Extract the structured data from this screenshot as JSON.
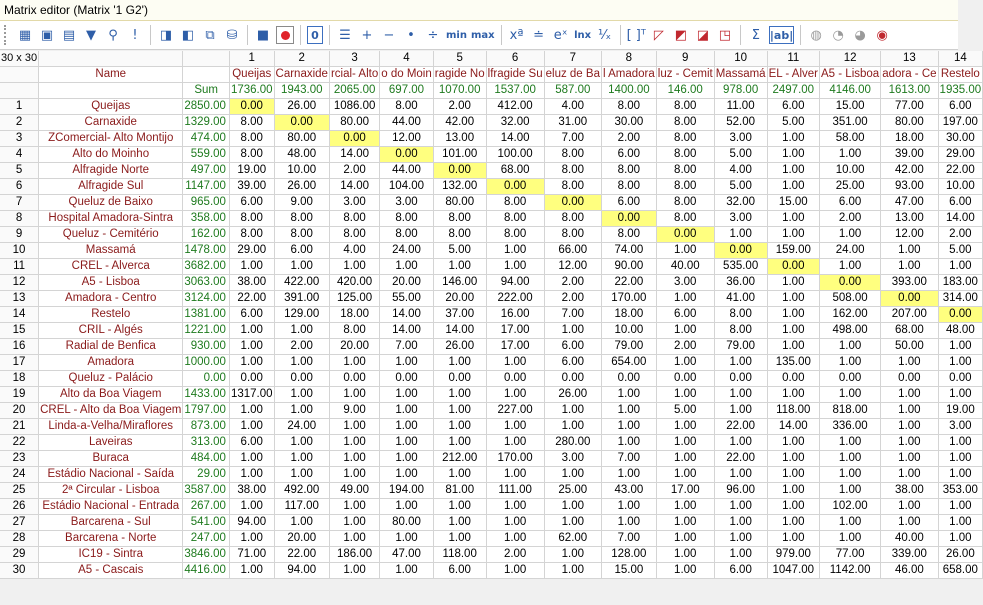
{
  "window": {
    "title": "Matrix editor (Matrix '1 G2')"
  },
  "toolbar": {
    "items": [
      {
        "icon": "grid-icon",
        "glyph": "▦"
      },
      {
        "icon": "open-icon",
        "glyph": "▣"
      },
      {
        "icon": "table-icon",
        "glyph": "▤"
      },
      {
        "icon": "filter-icon",
        "glyph": "▼"
      },
      {
        "icon": "binoculars-icon",
        "glyph": "⚲"
      },
      {
        "icon": "exclamation-icon",
        "glyph": "!"
      },
      {
        "icon": "sep"
      },
      {
        "icon": "import-icon",
        "glyph": "◨"
      },
      {
        "icon": "export-icon",
        "glyph": "◧"
      },
      {
        "icon": "copy-icon",
        "glyph": "⧉"
      },
      {
        "icon": "database-icon",
        "glyph": "⛁"
      },
      {
        "icon": "sep"
      },
      {
        "icon": "stop-icon",
        "glyph": "■"
      },
      {
        "icon": "record-icon",
        "glyph": ""
      },
      {
        "icon": "sep"
      },
      {
        "icon": "zero-icon",
        "glyph": "0"
      },
      {
        "icon": "sep"
      },
      {
        "icon": "list-icon",
        "glyph": "☰"
      },
      {
        "icon": "plus-icon",
        "glyph": "+"
      },
      {
        "icon": "minus-icon",
        "glyph": "−"
      },
      {
        "icon": "dot-icon",
        "glyph": "•"
      },
      {
        "icon": "divide-icon",
        "glyph": "÷"
      },
      {
        "icon": "min-icon",
        "glyph": "min"
      },
      {
        "icon": "max-icon",
        "glyph": "max"
      },
      {
        "icon": "sep"
      },
      {
        "icon": "power-icon",
        "glyph": "xª"
      },
      {
        "icon": "equals-icon",
        "glyph": "≐"
      },
      {
        "icon": "exp-icon",
        "glyph": "eˣ"
      },
      {
        "icon": "ln-icon",
        "glyph": "lnx"
      },
      {
        "icon": "reciprocal-icon",
        "glyph": "¹⁄ₓ"
      },
      {
        "icon": "sep"
      },
      {
        "icon": "brackets-icon",
        "glyph": "[ ]ᵀ"
      },
      {
        "icon": "diag-icon-1",
        "glyph": "◸"
      },
      {
        "icon": "diag-icon-2",
        "glyph": "◩"
      },
      {
        "icon": "diag-icon-3",
        "glyph": "◪"
      },
      {
        "icon": "diag-icon-4",
        "glyph": "◳"
      },
      {
        "icon": "sep"
      },
      {
        "icon": "sigma-icon",
        "glyph": "Σ"
      },
      {
        "icon": "abs-icon",
        "glyph": "|ab|"
      },
      {
        "icon": "sep"
      },
      {
        "icon": "chart-icon-1",
        "glyph": "◍"
      },
      {
        "icon": "chart-icon-2",
        "glyph": "◔"
      },
      {
        "icon": "chart-icon-3",
        "glyph": "◕"
      },
      {
        "icon": "chart-icon-4",
        "glyph": "◉"
      }
    ]
  },
  "matrix": {
    "corner": "30 x 30",
    "name_header": "Name",
    "sum_header": "Sum",
    "col_numbers": [
      "1",
      "2",
      "3",
      "4",
      "5",
      "6",
      "7",
      "8",
      "9",
      "10",
      "11",
      "12",
      "13",
      "14"
    ],
    "col_names": [
      "Queijas",
      "Carnaxide",
      "rcial- Alto",
      "o do Moin",
      "ragide No",
      "lfragide Su",
      "eluz de Ba",
      "l Amadora",
      "luz - Cemit",
      "Massamá",
      "EL - Alver",
      "A5 - Lisboa",
      "adora - Ce",
      "Restelo"
    ],
    "col_sums": [
      "1736.00",
      "1943.00",
      "2065.00",
      "697.00",
      "1070.00",
      "1537.00",
      "587.00",
      "1400.00",
      "146.00",
      "978.00",
      "2497.00",
      "4146.00",
      "1613.00",
      "1935.00"
    ],
    "rows": [
      {
        "id": "1",
        "name": "Queijas",
        "sum": "2850.00",
        "values": [
          "0.00",
          "26.00",
          "1086.00",
          "8.00",
          "2.00",
          "412.00",
          "4.00",
          "8.00",
          "8.00",
          "11.00",
          "6.00",
          "15.00",
          "77.00",
          "6.00"
        ]
      },
      {
        "id": "2",
        "name": "Carnaxide",
        "sum": "1329.00",
        "values": [
          "8.00",
          "0.00",
          "80.00",
          "44.00",
          "42.00",
          "32.00",
          "31.00",
          "30.00",
          "8.00",
          "52.00",
          "5.00",
          "351.00",
          "80.00",
          "197.00"
        ]
      },
      {
        "id": "3",
        "name": "ZComercial- Alto Montijo",
        "sum": "474.00",
        "values": [
          "8.00",
          "80.00",
          "0.00",
          "12.00",
          "13.00",
          "14.00",
          "7.00",
          "2.00",
          "8.00",
          "3.00",
          "1.00",
          "58.00",
          "18.00",
          "30.00"
        ]
      },
      {
        "id": "4",
        "name": "Alto do Moinho",
        "sum": "559.00",
        "values": [
          "8.00",
          "48.00",
          "14.00",
          "0.00",
          "101.00",
          "100.00",
          "8.00",
          "6.00",
          "8.00",
          "5.00",
          "1.00",
          "1.00",
          "39.00",
          "29.00"
        ]
      },
      {
        "id": "5",
        "name": "Alfragide Norte",
        "sum": "497.00",
        "values": [
          "19.00",
          "10.00",
          "2.00",
          "44.00",
          "0.00",
          "68.00",
          "8.00",
          "8.00",
          "8.00",
          "4.00",
          "1.00",
          "10.00",
          "42.00",
          "22.00"
        ]
      },
      {
        "id": "6",
        "name": "Alfragide Sul",
        "sum": "1147.00",
        "values": [
          "39.00",
          "26.00",
          "14.00",
          "104.00",
          "132.00",
          "0.00",
          "8.00",
          "8.00",
          "8.00",
          "5.00",
          "1.00",
          "25.00",
          "93.00",
          "10.00"
        ]
      },
      {
        "id": "7",
        "name": "Queluz de Baixo",
        "sum": "965.00",
        "values": [
          "6.00",
          "9.00",
          "3.00",
          "3.00",
          "80.00",
          "8.00",
          "0.00",
          "6.00",
          "8.00",
          "32.00",
          "15.00",
          "6.00",
          "47.00",
          "6.00"
        ]
      },
      {
        "id": "8",
        "name": "Hospital Amadora-Sintra",
        "sum": "358.00",
        "values": [
          "8.00",
          "8.00",
          "8.00",
          "8.00",
          "8.00",
          "8.00",
          "8.00",
          "0.00",
          "8.00",
          "3.00",
          "1.00",
          "2.00",
          "13.00",
          "14.00"
        ]
      },
      {
        "id": "9",
        "name": "Queluz - Cemitério",
        "sum": "162.00",
        "values": [
          "8.00",
          "8.00",
          "8.00",
          "8.00",
          "8.00",
          "8.00",
          "8.00",
          "8.00",
          "0.00",
          "1.00",
          "1.00",
          "1.00",
          "12.00",
          "2.00"
        ]
      },
      {
        "id": "10",
        "name": "Massamá",
        "sum": "1478.00",
        "values": [
          "29.00",
          "6.00",
          "4.00",
          "24.00",
          "5.00",
          "1.00",
          "66.00",
          "74.00",
          "1.00",
          "0.00",
          "159.00",
          "24.00",
          "1.00",
          "5.00"
        ]
      },
      {
        "id": "11",
        "name": "CREL - Alverca",
        "sum": "3682.00",
        "values": [
          "1.00",
          "1.00",
          "1.00",
          "1.00",
          "1.00",
          "1.00",
          "12.00",
          "90.00",
          "40.00",
          "535.00",
          "0.00",
          "1.00",
          "1.00",
          "1.00"
        ]
      },
      {
        "id": "12",
        "name": "A5 - Lisboa",
        "sum": "3063.00",
        "values": [
          "38.00",
          "422.00",
          "420.00",
          "20.00",
          "146.00",
          "94.00",
          "2.00",
          "22.00",
          "3.00",
          "36.00",
          "1.00",
          "0.00",
          "393.00",
          "183.00"
        ]
      },
      {
        "id": "13",
        "name": "Amadora - Centro",
        "sum": "3124.00",
        "values": [
          "22.00",
          "391.00",
          "125.00",
          "55.00",
          "20.00",
          "222.00",
          "2.00",
          "170.00",
          "1.00",
          "41.00",
          "1.00",
          "508.00",
          "0.00",
          "314.00"
        ]
      },
      {
        "id": "14",
        "name": "Restelo",
        "sum": "1381.00",
        "values": [
          "6.00",
          "129.00",
          "18.00",
          "14.00",
          "37.00",
          "16.00",
          "7.00",
          "18.00",
          "6.00",
          "8.00",
          "1.00",
          "162.00",
          "207.00",
          "0.00"
        ]
      },
      {
        "id": "15",
        "name": "CRIL - Algés",
        "sum": "1221.00",
        "values": [
          "1.00",
          "1.00",
          "8.00",
          "14.00",
          "14.00",
          "17.00",
          "1.00",
          "10.00",
          "1.00",
          "8.00",
          "1.00",
          "498.00",
          "68.00",
          "48.00"
        ]
      },
      {
        "id": "16",
        "name": "Radial de Benfica",
        "sum": "930.00",
        "values": [
          "1.00",
          "2.00",
          "20.00",
          "7.00",
          "26.00",
          "17.00",
          "6.00",
          "79.00",
          "2.00",
          "79.00",
          "1.00",
          "1.00",
          "50.00",
          "1.00"
        ]
      },
      {
        "id": "17",
        "name": "Amadora",
        "sum": "1000.00",
        "values": [
          "1.00",
          "1.00",
          "1.00",
          "1.00",
          "1.00",
          "1.00",
          "6.00",
          "654.00",
          "1.00",
          "1.00",
          "135.00",
          "1.00",
          "1.00",
          "1.00"
        ]
      },
      {
        "id": "18",
        "name": "Queluz - Palácio",
        "sum": "0.00",
        "values": [
          "0.00",
          "0.00",
          "0.00",
          "0.00",
          "0.00",
          "0.00",
          "0.00",
          "0.00",
          "0.00",
          "0.00",
          "0.00",
          "0.00",
          "0.00",
          "0.00"
        ]
      },
      {
        "id": "19",
        "name": "Alto da Boa Viagem",
        "sum": "1433.00",
        "values": [
          "1317.00",
          "1.00",
          "1.00",
          "1.00",
          "1.00",
          "1.00",
          "26.00",
          "1.00",
          "1.00",
          "1.00",
          "1.00",
          "1.00",
          "1.00",
          "1.00"
        ]
      },
      {
        "id": "20",
        "name": "CREL - Alto da Boa Viagem",
        "sum": "1797.00",
        "values": [
          "1.00",
          "1.00",
          "9.00",
          "1.00",
          "1.00",
          "227.00",
          "1.00",
          "1.00",
          "5.00",
          "1.00",
          "118.00",
          "818.00",
          "1.00",
          "19.00"
        ]
      },
      {
        "id": "21",
        "name": "Linda-a-Velha/Miraflores",
        "sum": "873.00",
        "values": [
          "1.00",
          "24.00",
          "1.00",
          "1.00",
          "1.00",
          "1.00",
          "1.00",
          "1.00",
          "1.00",
          "22.00",
          "14.00",
          "336.00",
          "1.00",
          "3.00"
        ]
      },
      {
        "id": "22",
        "name": "Laveiras",
        "sum": "313.00",
        "values": [
          "6.00",
          "1.00",
          "1.00",
          "1.00",
          "1.00",
          "1.00",
          "280.00",
          "1.00",
          "1.00",
          "1.00",
          "1.00",
          "1.00",
          "1.00",
          "1.00"
        ]
      },
      {
        "id": "23",
        "name": "Buraca",
        "sum": "484.00",
        "values": [
          "1.00",
          "1.00",
          "1.00",
          "1.00",
          "212.00",
          "170.00",
          "3.00",
          "7.00",
          "1.00",
          "22.00",
          "1.00",
          "1.00",
          "1.00",
          "1.00"
        ]
      },
      {
        "id": "24",
        "name": "Estádio Nacional - Saída",
        "sum": "29.00",
        "values": [
          "1.00",
          "1.00",
          "1.00",
          "1.00",
          "1.00",
          "1.00",
          "1.00",
          "1.00",
          "1.00",
          "1.00",
          "1.00",
          "1.00",
          "1.00",
          "1.00"
        ]
      },
      {
        "id": "25",
        "name": "2ª Circular - Lisboa",
        "sum": "3587.00",
        "values": [
          "38.00",
          "492.00",
          "49.00",
          "194.00",
          "81.00",
          "111.00",
          "25.00",
          "43.00",
          "17.00",
          "96.00",
          "1.00",
          "1.00",
          "38.00",
          "353.00"
        ]
      },
      {
        "id": "26",
        "name": "Estádio Nacional - Entrada",
        "sum": "267.00",
        "values": [
          "1.00",
          "117.00",
          "1.00",
          "1.00",
          "1.00",
          "1.00",
          "1.00",
          "1.00",
          "1.00",
          "1.00",
          "1.00",
          "102.00",
          "1.00",
          "1.00"
        ]
      },
      {
        "id": "27",
        "name": "Barcarena - Sul",
        "sum": "541.00",
        "values": [
          "94.00",
          "1.00",
          "1.00",
          "80.00",
          "1.00",
          "1.00",
          "1.00",
          "1.00",
          "1.00",
          "1.00",
          "1.00",
          "1.00",
          "1.00",
          "1.00"
        ]
      },
      {
        "id": "28",
        "name": "Barcarena - Norte",
        "sum": "247.00",
        "values": [
          "1.00",
          "20.00",
          "1.00",
          "1.00",
          "1.00",
          "1.00",
          "62.00",
          "7.00",
          "1.00",
          "1.00",
          "1.00",
          "1.00",
          "40.00",
          "1.00"
        ]
      },
      {
        "id": "29",
        "name": "IC19 - Sintra",
        "sum": "3846.00",
        "values": [
          "71.00",
          "22.00",
          "186.00",
          "47.00",
          "118.00",
          "2.00",
          "1.00",
          "128.00",
          "1.00",
          "1.00",
          "979.00",
          "77.00",
          "339.00",
          "26.00"
        ]
      },
      {
        "id": "30",
        "name": "A5 - Cascais",
        "sum": "4416.00",
        "values": [
          "1.00",
          "94.00",
          "1.00",
          "1.00",
          "6.00",
          "1.00",
          "1.00",
          "15.00",
          "1.00",
          "6.00",
          "1047.00",
          "1142.00",
          "46.00",
          "658.00"
        ]
      }
    ]
  }
}
